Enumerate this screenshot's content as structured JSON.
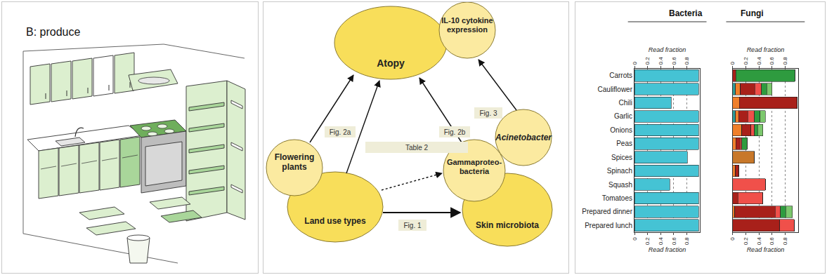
{
  "illustration": {
    "label": "B: produce"
  },
  "diagram": {
    "nodes": [
      {
        "lines": [
          "Atopy"
        ]
      },
      {
        "lines": [
          "IL-10 cytokine",
          "expression"
        ]
      },
      {
        "lines": [
          "Land use types"
        ]
      },
      {
        "lines": [
          "Flowering",
          "plants"
        ]
      },
      {
        "lines": [
          "Skin microbiota"
        ]
      },
      {
        "lines": [
          "Gammaproteo-",
          "bacteria"
        ]
      },
      {
        "lines": [
          "Acinetobacter"
        ]
      }
    ],
    "edge_labels": [
      "Fig. 2a",
      "Table 2",
      "Fig. 2b",
      "Fig. 3",
      "Fig. 1"
    ]
  },
  "chart_data": [
    {
      "type": "bar",
      "orientation": "horizontal",
      "title": "Bacteria",
      "x_label": "Read fraction",
      "categories": [
        "Carrots",
        "Cauliflower",
        "Chili",
        "Garlic",
        "Onions",
        "Peas",
        "Spices",
        "Spinach",
        "Squash",
        "Tomatoes",
        "Prepared dinner",
        "Prepared lunch"
      ],
      "values": [
        0.98,
        0.98,
        0.56,
        0.98,
        0.98,
        0.98,
        0.81,
        0.98,
        0.54,
        0.98,
        0.98,
        0.98
      ],
      "color": "#45c3d4",
      "xlim": [
        0,
        1
      ],
      "xticks": [
        0,
        0.2,
        0.4,
        0.6,
        0.8
      ],
      "grid": true
    },
    {
      "type": "bar",
      "orientation": "horizontal",
      "stacked": true,
      "title": "Fungi",
      "x_label": "Read fraction",
      "categories": [
        "Carrots",
        "Cauliflower",
        "Chili",
        "Garlic",
        "Onions",
        "Peas",
        "Spices",
        "Spinach",
        "Squash",
        "Tomatoes",
        "Prepared dinner",
        "Prepared lunch"
      ],
      "series": [
        {
          "color": "#2f9c97",
          "values": [
            0,
            0.04,
            0,
            0.04,
            0,
            0,
            0,
            0,
            0,
            0,
            0,
            0
          ]
        },
        {
          "color": "#f07f2a",
          "values": [
            0,
            0.08,
            0.1,
            0.05,
            0.14,
            0.05,
            0,
            0.04,
            0,
            0,
            0.03,
            0
          ]
        },
        {
          "color": "#c8782a",
          "values": [
            0,
            0,
            0,
            0,
            0,
            0,
            0.33,
            0,
            0,
            0,
            0,
            0
          ]
        },
        {
          "color": "#a8201a",
          "values": [
            0.05,
            0.22,
            0.88,
            0.14,
            0.14,
            0.06,
            0,
            0.05,
            0,
            0.08,
            0.62,
            0.72
          ]
        },
        {
          "color": "#f0504a",
          "values": [
            0,
            0.1,
            0,
            0.1,
            0.05,
            0.03,
            0,
            0,
            0.5,
            0.38,
            0.08,
            0.22
          ]
        },
        {
          "color": "#2e9b3f",
          "values": [
            0.9,
            0.08,
            0,
            0.09,
            0.05,
            0.08,
            0,
            0,
            0,
            0,
            0.08,
            0
          ]
        },
        {
          "color": "#7cc86d",
          "values": [
            0,
            0.08,
            0,
            0.08,
            0.08,
            0,
            0,
            0,
            0,
            0,
            0.1,
            0
          ]
        }
      ],
      "xlim": [
        0,
        1
      ],
      "xticks": [
        0,
        0.2,
        0.4,
        0.6,
        0.8
      ],
      "grid": true,
      "tick_labels": "x"
    }
  ]
}
